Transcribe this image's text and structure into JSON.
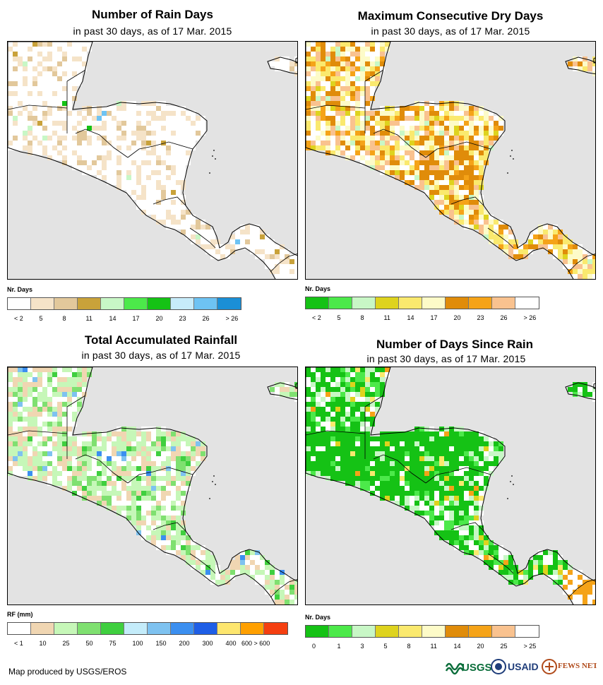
{
  "panels": [
    {
      "title": "Number of Rain Days",
      "subtitle": "in past 30 days, as of 17 Mar. 2015",
      "legend_title": "Nr. Days",
      "legend_colors": [
        "#ffffff",
        "#f5e3c8",
        "#e2c89b",
        "#c9a23a",
        "#c8f7c6",
        "#4ce94a",
        "#15c215",
        "#c7ecfa",
        "#6ec3f3",
        "#1b8fd6"
      ],
      "legend_labels": [
        "< 2",
        "5",
        "8",
        "11",
        "14",
        "17",
        "20",
        "23",
        "26",
        "> 26"
      ]
    },
    {
      "title": "Maximum Consecutive Dry Days",
      "subtitle": "in past 30 days, as of 17 Mar. 2015",
      "legend_title": "Nr. Days",
      "legend_colors": [
        "#15c215",
        "#4ce94a",
        "#c8f7c6",
        "#ded31e",
        "#fae96e",
        "#fdfbc8",
        "#e08c0a",
        "#f5a318",
        "#f9c28f",
        "#ffffff"
      ],
      "legend_labels": [
        "< 2",
        "5",
        "8",
        "11",
        "14",
        "17",
        "20",
        "23",
        "26",
        "> 26"
      ]
    },
    {
      "title": "Total Accumulated Rainfall",
      "subtitle": "in past 30 days, as of 17 Mar. 2015",
      "legend_title": "RF (mm)",
      "legend_colors": [
        "#ffffff",
        "#f0d6b2",
        "#c6f7b8",
        "#7fe070",
        "#3fcf3f",
        "#c4ecfa",
        "#7ec2f0",
        "#3b8ff0",
        "#1e5ee6",
        "#fde66e",
        "#ffa000",
        "#f53f10"
      ],
      "legend_labels": [
        "< 1",
        "10",
        "25",
        "50",
        "75",
        "100",
        "150",
        "200",
        "300",
        "400",
        "600 > 600"
      ]
    },
    {
      "title": "Number of Days Since Rain",
      "subtitle": "in past 30 days, as of 17 Mar. 2015",
      "legend_title": "Nr. Days",
      "legend_colors": [
        "#15c215",
        "#4ce94a",
        "#c8f7c6",
        "#ded31e",
        "#fae96e",
        "#fdfbc8",
        "#e08c0a",
        "#f5a318",
        "#f9c28f",
        "#ffffff"
      ],
      "legend_labels": [
        "0",
        "1",
        "3",
        "5",
        "8",
        "11",
        "14",
        "20",
        "25",
        "> 25"
      ]
    }
  ],
  "footer": "Map produced by USGS/EROS",
  "logos": {
    "usgs": "USGS",
    "usaid": "USAID",
    "fews": "FEWS NET"
  }
}
